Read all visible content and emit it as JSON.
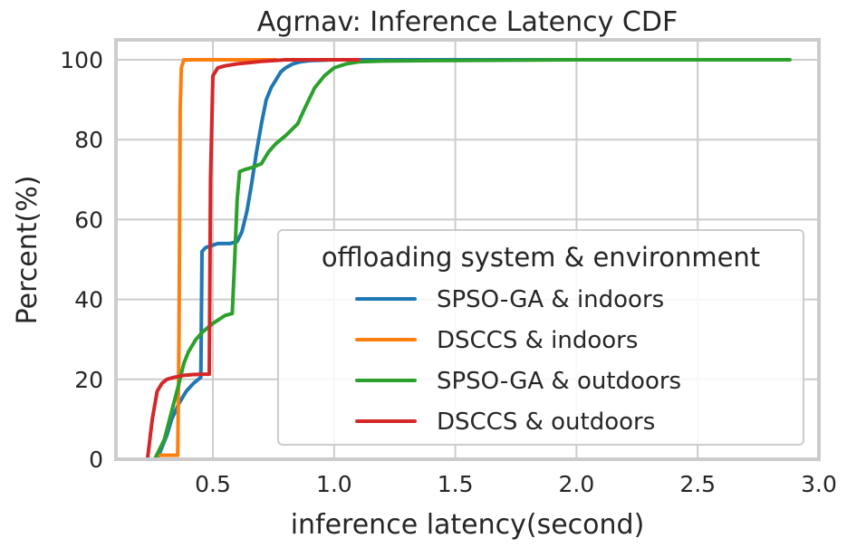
{
  "chart_data": {
    "type": "line",
    "title": "Agrnav: Inference Latency CDF",
    "xlabel": "inference latency(second)",
    "ylabel": "Percent(%)",
    "xlim": [
      0.1,
      3.0
    ],
    "ylim": [
      0,
      105
    ],
    "xticks": [
      0.5,
      1.0,
      1.5,
      2.0,
      2.5,
      3.0
    ],
    "xtick_labels": [
      "0.5",
      "1.0",
      "1.5",
      "2.0",
      "2.5",
      "3.0"
    ],
    "yticks": [
      0,
      20,
      40,
      60,
      80,
      100
    ],
    "ytick_labels": [
      "0",
      "20",
      "40",
      "60",
      "80",
      "100"
    ],
    "grid": true,
    "legend": {
      "title": "offloading system & environment",
      "placement": "lower-right"
    },
    "series": [
      {
        "name": "SPSO-GA & indoors",
        "color": "#1f77b4",
        "x": [
          0.27,
          0.29,
          0.31,
          0.33,
          0.36,
          0.39,
          0.42,
          0.45,
          0.455,
          0.47,
          0.52,
          0.57,
          0.6,
          0.62,
          0.64,
          0.66,
          0.68,
          0.7,
          0.72,
          0.74,
          0.76,
          0.78,
          0.8,
          0.83,
          0.86,
          0.9,
          0.95,
          1.0,
          1.1,
          1.3,
          1.6,
          2.0,
          2.27
        ],
        "y": [
          0,
          3,
          6,
          10,
          14,
          17,
          19,
          20.5,
          52,
          53,
          54,
          54,
          54.5,
          57,
          62,
          69,
          77,
          84,
          90,
          93,
          95,
          97,
          98,
          99,
          99.5,
          99.8,
          99.9,
          100,
          100,
          100,
          100,
          100,
          100
        ]
      },
      {
        "name": "DSCCS & indoors",
        "color": "#ff7f0e",
        "x": [
          0.27,
          0.3,
          0.33,
          0.355,
          0.36,
          0.365,
          0.37,
          0.38,
          0.4,
          0.5,
          0.6,
          0.7,
          0.76
        ],
        "y": [
          1,
          1,
          1,
          1,
          30,
          88,
          98,
          100,
          100,
          100,
          100,
          100,
          100
        ]
      },
      {
        "name": "SPSO-GA & outdoors",
        "color": "#2ca02c",
        "x": [
          0.26,
          0.3,
          0.33,
          0.36,
          0.38,
          0.4,
          0.43,
          0.46,
          0.5,
          0.55,
          0.58,
          0.59,
          0.6,
          0.61,
          0.63,
          0.66,
          0.7,
          0.73,
          0.76,
          0.8,
          0.85,
          0.88,
          0.92,
          0.96,
          1.0,
          1.05,
          1.1,
          1.2,
          1.4,
          1.7,
          2.0,
          2.5,
          2.88
        ],
        "y": [
          0,
          5,
          12,
          19,
          24,
          27,
          30,
          32,
          34,
          36,
          36.5,
          50,
          65,
          72,
          72.5,
          73,
          74,
          77,
          79,
          81,
          84,
          88,
          93,
          96,
          98,
          99,
          99.5,
          99.7,
          99.8,
          99.9,
          100,
          100,
          100
        ]
      },
      {
        "name": "DSCCS & outdoors",
        "color": "#d62728",
        "x": [
          0.23,
          0.25,
          0.27,
          0.29,
          0.31,
          0.34,
          0.38,
          0.42,
          0.46,
          0.485,
          0.49,
          0.5,
          0.52,
          0.55,
          0.6,
          0.65,
          0.7,
          0.75,
          0.8,
          0.9,
          1.0,
          1.1
        ],
        "y": [
          0,
          10,
          17,
          19,
          20,
          20.5,
          21,
          21.2,
          21.3,
          21.3,
          70,
          96,
          98,
          98.5,
          99,
          99.3,
          99.6,
          99.8,
          100,
          100,
          100,
          100
        ]
      }
    ]
  }
}
